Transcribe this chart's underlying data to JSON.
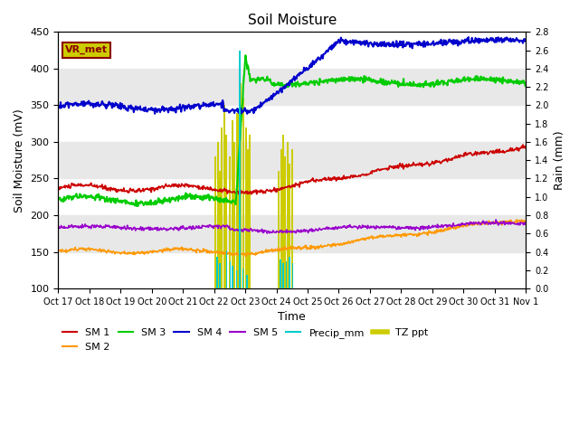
{
  "title": "Soil Moisture",
  "xlabel": "Time",
  "ylabel_left": "Soil Moisture (mV)",
  "ylabel_right": "Rain (mm)",
  "ylim_left": [
    100,
    450
  ],
  "ylim_right": [
    0.0,
    2.8
  ],
  "background_color": "#ffffff",
  "band_color": "#e8e8e8",
  "vr_met_label": "VR_met",
  "x_tick_labels": [
    "Oct 17",
    "Oct 18",
    "Oct 19",
    "Oct 20",
    "Oct 21",
    "Oct 22",
    "Oct 23",
    "Oct 24",
    "Oct 25",
    "Oct 26",
    "Oct 27",
    "Oct 28",
    "Oct 29",
    "Oct 30",
    "Oct 31",
    "Nov 1"
  ],
  "sm1_color": "#cc0000",
  "sm2_color": "#ff9900",
  "sm3_color": "#00cc00",
  "sm4_color": "#0000cc",
  "sm5_color": "#9900cc",
  "precip_color": "#00cccc",
  "tzppt_color": "#cccc00",
  "yticks_left": [
    100,
    150,
    200,
    250,
    300,
    350,
    400,
    450
  ],
  "yticks_right": [
    0.0,
    0.2,
    0.4,
    0.6,
    0.8,
    1.0,
    1.2,
    1.4,
    1.6,
    1.8,
    2.0,
    2.2,
    2.4,
    2.6,
    2.8
  ]
}
